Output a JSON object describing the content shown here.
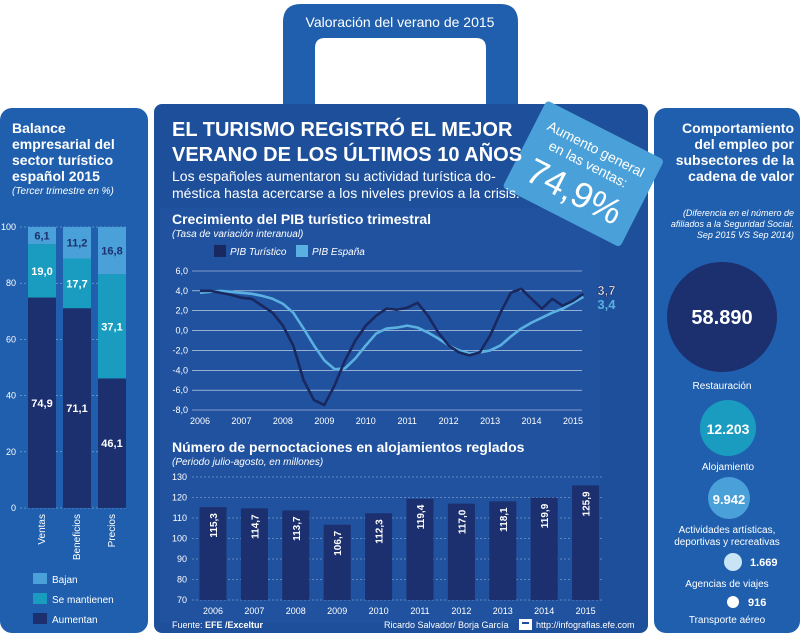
{
  "header": {
    "handle_title": "Valoración del verano de 2015",
    "headline_line1": "EL TURISMO REGISTRÓ EL MEJOR",
    "headline_line2": "VERANO DE LOS ÚLTIMOS 10 AÑOS",
    "subhead_line1": "Los españoles aumentaron su actividad turística do-",
    "subhead_line2": "méstica hasta acercarse a los niveles previos a la crisis."
  },
  "badge": {
    "line1": "Aumento general",
    "line2": "en las ventas:",
    "value": "74,9%"
  },
  "footer": {
    "source_prefix": "Fuente: ",
    "source": "EFE /Exceltur",
    "authors": "Ricardo Salvador/ Borja García",
    "url": "http://infografias.efe.com"
  },
  "colors": {
    "dark_navy": "#1c2f6e",
    "mid_blue": "#1f5fae",
    "light_blue": "#4aa0d8",
    "teal": "#1a9cc0",
    "line_dark": "#1a2860",
    "line_light": "#5ab0e0"
  },
  "left_panel": {
    "title": "Balance empresarial del sector turístico español 2015",
    "subtitle": "(Tercer trimestre en %)",
    "legend": [
      "Bajan",
      "Se mantienen",
      "Aumentan"
    ]
  },
  "right_panel": {
    "title": "Comportamiento del empleo por subsectores de la cadena de valor",
    "subtitle": "(Diferencia en el número de afiliados a la Seguridad Social. Sep 2015 VS Sep 2014)",
    "items": [
      {
        "value": "58.890",
        "label": "Restauración"
      },
      {
        "value": "12.203",
        "label": "Alojamiento"
      },
      {
        "value": "9.942",
        "label": "Actividades artísticas, deportivas y recreativas"
      },
      {
        "value": "1.669",
        "label": "Agencias de viajes"
      },
      {
        "value": "916",
        "label": "Transporte aéreo"
      }
    ]
  },
  "chart_data": [
    {
      "type": "bar",
      "stacked": true,
      "title": "Balance empresarial del sector turístico español 2015",
      "subtitle": "(Tercer trimestre en %)",
      "categories": [
        "Ventas",
        "Beneficios",
        "Precios"
      ],
      "series": [
        {
          "name": "Aumentan",
          "values": [
            74.9,
            71.1,
            46.1
          ],
          "labels": [
            "74,9",
            "71,1",
            "46,1"
          ]
        },
        {
          "name": "Se mantienen",
          "values": [
            19.0,
            17.7,
            37.1
          ],
          "labels": [
            "19,0",
            "17,7",
            "37,1"
          ]
        },
        {
          "name": "Bajan",
          "values": [
            6.1,
            11.2,
            16.8
          ],
          "labels": [
            "6,1",
            "11,2",
            "16,8"
          ]
        }
      ],
      "ylim": [
        0,
        100
      ],
      "yticks": [
        "0",
        "20",
        "40",
        "60",
        "80",
        "100"
      ],
      "legend": "bottom"
    },
    {
      "type": "line",
      "title": "Crecimiento del PIB turístico trimestral",
      "subtitle": "(Tasa de variación interanual)",
      "xticks": [
        "2006",
        "2007",
        "2008",
        "2009",
        "2010",
        "2011",
        "2012",
        "2013",
        "2014",
        "2015"
      ],
      "yticks": [
        "6,0",
        "4,0",
        "2,0",
        "0,0",
        "-2,0",
        "-4,0",
        "-6,0",
        "-8,0"
      ],
      "ylim": [
        -8,
        6
      ],
      "x": [
        2006.0,
        2006.25,
        2006.5,
        2006.75,
        2007.0,
        2007.25,
        2007.5,
        2007.75,
        2008.0,
        2008.25,
        2008.5,
        2008.75,
        2009.0,
        2009.25,
        2009.5,
        2009.75,
        2010.0,
        2010.25,
        2010.5,
        2010.75,
        2011.0,
        2011.25,
        2011.5,
        2011.75,
        2012.0,
        2012.25,
        2012.5,
        2012.75,
        2013.0,
        2013.25,
        2013.5,
        2013.75,
        2014.0,
        2014.25,
        2014.5,
        2014.75,
        2015.0,
        2015.25
      ],
      "series": [
        {
          "name": "PIB Turístico",
          "values": [
            4.0,
            4.0,
            3.8,
            3.6,
            3.3,
            3.2,
            2.5,
            1.8,
            0.5,
            -1.5,
            -5.0,
            -7.0,
            -7.5,
            -5.5,
            -3.0,
            -1.0,
            0.5,
            1.5,
            2.2,
            2.1,
            2.3,
            2.8,
            1.5,
            -0.2,
            -1.5,
            -2.2,
            -2.5,
            -2.2,
            -0.5,
            1.8,
            3.8,
            4.2,
            3.2,
            2.2,
            3.2,
            2.5,
            3.0,
            3.7
          ],
          "end_label": "3,7"
        },
        {
          "name": "PIB España",
          "values": [
            3.8,
            3.9,
            4.0,
            3.9,
            3.8,
            3.7,
            3.5,
            3.2,
            2.7,
            1.8,
            0.2,
            -1.5,
            -3.0,
            -3.9,
            -3.8,
            -2.8,
            -1.5,
            -0.3,
            0.2,
            0.3,
            0.5,
            0.3,
            -0.2,
            -0.8,
            -1.5,
            -2.0,
            -2.3,
            -2.2,
            -2.0,
            -1.5,
            -0.6,
            0.2,
            0.8,
            1.3,
            1.8,
            2.2,
            2.8,
            3.4
          ],
          "end_label": "3,4"
        }
      ],
      "legend": "top-left"
    },
    {
      "type": "bar",
      "title": "Número de pernoctaciones en alojamientos reglados",
      "subtitle": "(Periodo julio-agosto, en millones)",
      "categories": [
        "2006",
        "2007",
        "2008",
        "2009",
        "2010",
        "2011",
        "2012",
        "2013",
        "2014",
        "2015"
      ],
      "values": [
        115.3,
        114.7,
        113.7,
        106.7,
        112.3,
        119.4,
        117.0,
        118.1,
        119.9,
        125.9
      ],
      "labels": [
        "115,3",
        "114,7",
        "113,7",
        "106,7",
        "112,3",
        "119,4",
        "117,0",
        "118,1",
        "119,9",
        "125,9"
      ],
      "ylim": [
        70,
        130
      ],
      "yticks": [
        "70",
        "80",
        "90",
        "100",
        "110",
        "120",
        "130"
      ]
    }
  ]
}
